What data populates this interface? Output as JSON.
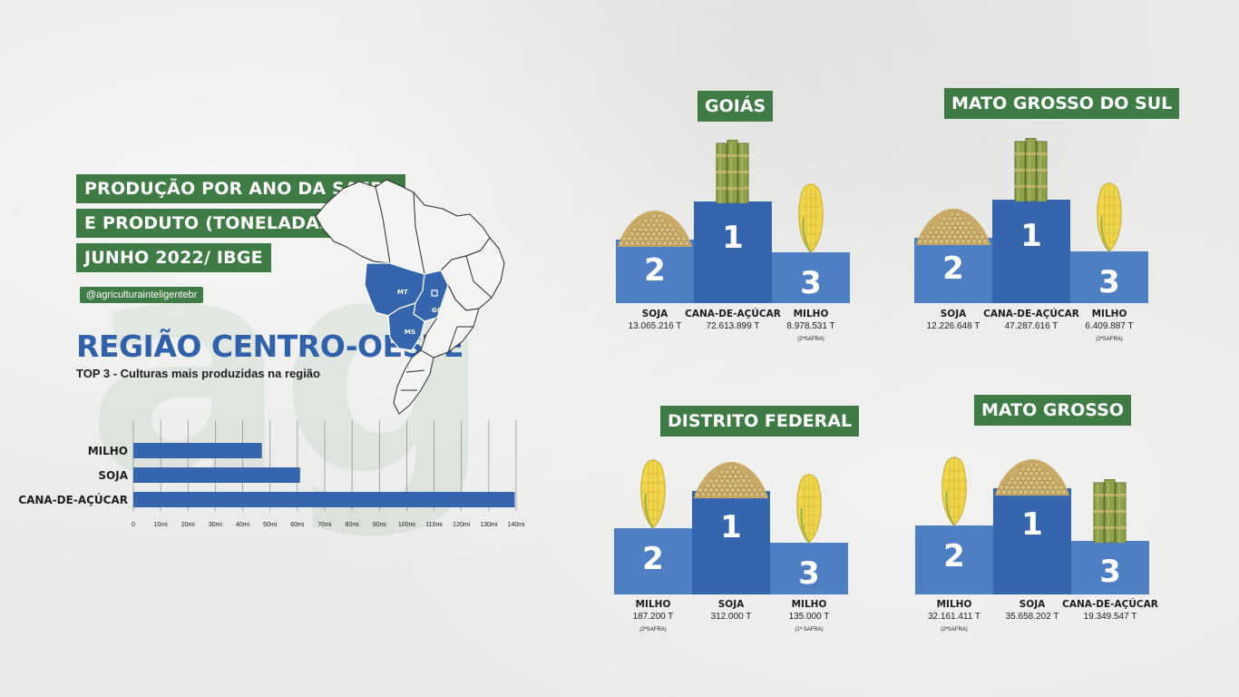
{
  "header": {
    "title_lines": [
      "PRODUÇÃO POR ANO DA SAFRA",
      "E PRODUTO (TONELADAS)",
      "JUNHO 2022/ IBGE"
    ],
    "handle": "@agriculturainteligentebr"
  },
  "region": {
    "title": "REGIÃO CENTRO-OESTE",
    "subtitle": "TOP 3 - Culturas mais produzidas na região"
  },
  "map_labels": {
    "mt": "MT",
    "go": "GO",
    "ms": "MS"
  },
  "colors": {
    "green": "#3f7b45",
    "blue": "#3566ad",
    "blue_light": "#4e7fc2",
    "bar": "#3566ad"
  },
  "chart_data": {
    "type": "bar",
    "orientation": "horizontal",
    "categories": [
      "MILHO",
      "SOJA",
      "CANA-DE-AÇÚCAR"
    ],
    "values": [
      47,
      61,
      139.5
    ],
    "unit": "mi",
    "xlim": [
      0,
      140
    ],
    "xticks": [
      "0",
      "10mi",
      "20mi",
      "30mi",
      "40mi",
      "50mi",
      "60mi",
      "70mi",
      "80mi",
      "90mi",
      "100mi",
      "110mi",
      "120mi",
      "130mi",
      "140mi"
    ],
    "grid": true
  },
  "states": [
    {
      "name": "GOIÁS",
      "places": [
        {
          "rank": "2",
          "crop": "SOJA",
          "value": "13.065.216 T",
          "note": "",
          "icon": "soy-pile"
        },
        {
          "rank": "1",
          "crop": "CANA-DE-AÇÚCAR",
          "value": "72.613.899 T",
          "note": "",
          "icon": "sugarcane"
        },
        {
          "rank": "3",
          "crop": "MILHO",
          "value": "8.978.531 T",
          "note": "(2ªSAFRA)",
          "icon": "corn"
        }
      ]
    },
    {
      "name": "MATO GROSSO DO SUL",
      "places": [
        {
          "rank": "2",
          "crop": "SOJA",
          "value": "12.226.648 T",
          "note": "",
          "icon": "soy-pile"
        },
        {
          "rank": "1",
          "crop": "CANA-DE-AÇÚCAR",
          "value": "47.287.616 T",
          "note": "",
          "icon": "sugarcane"
        },
        {
          "rank": "3",
          "crop": "MILHO",
          "value": "6.409.887 T",
          "note": "(2ªSAFRA)",
          "icon": "corn"
        }
      ]
    },
    {
      "name": "DISTRITO FEDERAL",
      "places": [
        {
          "rank": "2",
          "crop": "MILHO",
          "value": "187.200 T",
          "note": "(2ªSAFRA)",
          "icon": "corn"
        },
        {
          "rank": "1",
          "crop": "SOJA",
          "value": "312.000 T",
          "note": "",
          "icon": "soy-pile"
        },
        {
          "rank": "3",
          "crop": "MILHO",
          "value": "135.000 T",
          "note": "(1ª SAFRA)",
          "icon": "corn"
        }
      ]
    },
    {
      "name": "MATO GROSSO",
      "places": [
        {
          "rank": "2",
          "crop": "MILHO",
          "value": "32.161.411 T",
          "note": "(2ªSAFRA)",
          "icon": "corn"
        },
        {
          "rank": "1",
          "crop": "SOJA",
          "value": "35.658.202 T",
          "note": "",
          "icon": "soy-pile"
        },
        {
          "rank": "3",
          "crop": "CANA-DE-AÇÚCAR",
          "value": "19.349.547 T",
          "note": "",
          "icon": "sugarcane"
        }
      ]
    }
  ]
}
